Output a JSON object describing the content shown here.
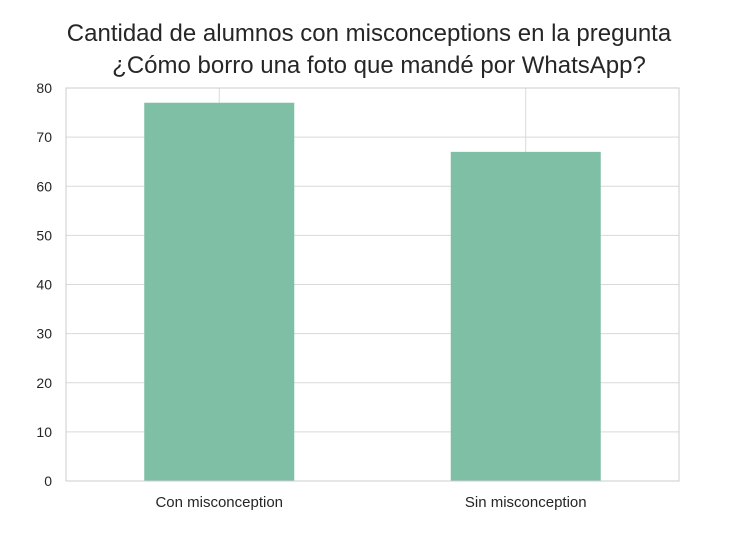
{
  "chart_data": {
    "type": "bar",
    "title_lines": [
      "Cantidad de alumnos con misconceptions en la pregunta",
      "¿Cómo borro una foto que mandé por WhatsApp?"
    ],
    "categories": [
      "Con misconception",
      "Sin misconception"
    ],
    "values": [
      77,
      67
    ],
    "xlabel": "",
    "ylabel": "",
    "ylim": [
      0,
      80
    ],
    "yticks": [
      0,
      10,
      20,
      30,
      40,
      50,
      60,
      70,
      80
    ],
    "grid": true,
    "legend": "none",
    "bar_color": "#7fbfa6",
    "grid_color": "#d9d9d9",
    "axis_color": "#cccccc"
  }
}
